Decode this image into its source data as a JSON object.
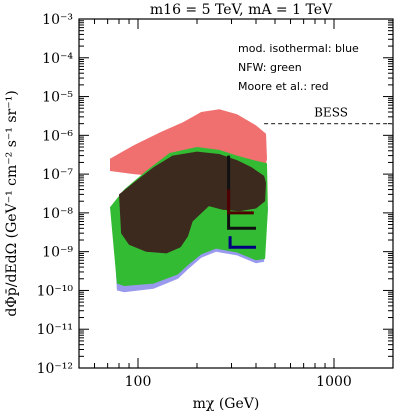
{
  "chart_data": {
    "type": "area",
    "title": "m16 = 5 TeV, mA = 1 TeV",
    "xlabel": "mχ (GeV)",
    "ylabel": "dΦp̄/dEdΩ (GeV⁻¹ cm⁻² s⁻¹ sr⁻¹)",
    "xscale": "log",
    "yscale": "log",
    "xlim": [
      50,
      2000
    ],
    "ylim": [
      1e-12,
      0.001
    ],
    "x_ticks": [
      {
        "value": 100,
        "label": "100"
      },
      {
        "value": 1000,
        "label": "1000"
      }
    ],
    "y_ticks": [
      {
        "value": 1e-12,
        "label": "10⁻¹²"
      },
      {
        "value": 1e-11,
        "label": "10⁻¹¹"
      },
      {
        "value": 1e-10,
        "label": "10⁻¹⁰"
      },
      {
        "value": 1e-09,
        "label": "10⁻⁹"
      },
      {
        "value": 1e-08,
        "label": "10⁻⁸"
      },
      {
        "value": 1e-07,
        "label": "10⁻⁷"
      },
      {
        "value": 1e-06,
        "label": "10⁻⁶"
      },
      {
        "value": 1e-05,
        "label": "10⁻⁵"
      },
      {
        "value": 0.0001,
        "label": "10⁻⁴"
      },
      {
        "value": 0.001,
        "label": "10⁻³"
      }
    ],
    "legend": {
      "placement": "top-right",
      "entries": [
        {
          "label": "mod. isothermal: blue",
          "color": "#9999ee"
        },
        {
          "label": "NFW: green",
          "color": "#33bb33"
        },
        {
          "label": "Moore et al.: red",
          "color": "#f07070"
        }
      ]
    },
    "series": [
      {
        "key": "moore",
        "color": "#f07070",
        "region": [
          [
            72,
            1.2e-07
          ],
          [
            72,
            2.5e-07
          ],
          [
            95,
            5.5e-07
          ],
          [
            130,
            1.2e-06
          ],
          [
            170,
            2.2e-06
          ],
          [
            210,
            4e-06
          ],
          [
            260,
            4.7e-06
          ],
          [
            320,
            3.5e-06
          ],
          [
            400,
            1.8e-06
          ],
          [
            450,
            1.1e-06
          ],
          [
            455,
            2.5e-07
          ],
          [
            430,
            5e-08
          ],
          [
            380,
            2e-08
          ],
          [
            300,
            2.6e-08
          ],
          [
            230,
            4e-08
          ],
          [
            180,
            6e-08
          ],
          [
            150,
            8e-08
          ],
          [
            120,
            9e-08
          ],
          [
            95,
            1e-07
          ]
        ]
      },
      {
        "key": "isothermal",
        "color": "#9999ee",
        "region": [
          [
            74,
            1.5e-08
          ],
          [
            85,
            3.5e-08
          ],
          [
            110,
            1e-07
          ],
          [
            145,
            2.8e-07
          ],
          [
            200,
            4.2e-07
          ],
          [
            260,
            3.8e-07
          ],
          [
            330,
            2.8e-07
          ],
          [
            400,
            2e-07
          ],
          [
            450,
            1.8e-07
          ],
          [
            460,
            1.2e-08
          ],
          [
            440,
            5.5e-10
          ],
          [
            400,
            5e-10
          ],
          [
            320,
            8e-10
          ],
          [
            250,
            1e-09
          ],
          [
            210,
            7e-10
          ],
          [
            180,
            3.5e-10
          ],
          [
            160,
            2e-10
          ],
          [
            120,
            1.1e-10
          ],
          [
            85,
            9e-11
          ],
          [
            78,
            1e-10
          ]
        ]
      },
      {
        "key": "nfw",
        "color": "#33bb33",
        "region": [
          [
            72,
            1.4e-08
          ],
          [
            85,
            4e-08
          ],
          [
            110,
            1.2e-07
          ],
          [
            145,
            3.5e-07
          ],
          [
            200,
            5e-07
          ],
          [
            260,
            4.2e-07
          ],
          [
            320,
            3e-07
          ],
          [
            400,
            2.2e-07
          ],
          [
            455,
            1.9e-07
          ],
          [
            460,
            1.2e-08
          ],
          [
            445,
            6.5e-10
          ],
          [
            400,
            6e-10
          ],
          [
            320,
            9.5e-10
          ],
          [
            250,
            1.2e-09
          ],
          [
            210,
            8.5e-10
          ],
          [
            180,
            4.5e-10
          ],
          [
            160,
            2.6e-10
          ],
          [
            120,
            1.5e-10
          ],
          [
            85,
            1.3e-10
          ],
          [
            78,
            1.5e-10
          ]
        ]
      },
      {
        "key": "overlap",
        "color": "#3d2a1e",
        "region": [
          [
            80,
            3e-08
          ],
          [
            95,
            6e-08
          ],
          [
            120,
            1.5e-07
          ],
          [
            150,
            3e-07
          ],
          [
            200,
            3.8e-07
          ],
          [
            260,
            3.3e-07
          ],
          [
            320,
            2.3e-07
          ],
          [
            380,
            1.5e-07
          ],
          [
            440,
            9e-08
          ],
          [
            450,
            6e-08
          ],
          [
            445,
            2e-08
          ],
          [
            400,
            1.3e-08
          ],
          [
            330,
            1.1e-08
          ],
          [
            270,
            1.2e-08
          ],
          [
            230,
            1.5e-08
          ],
          [
            190,
            6e-09
          ],
          [
            180,
            2.5e-09
          ],
          [
            165,
            1.3e-09
          ],
          [
            140,
            9e-10
          ],
          [
            110,
            1e-09
          ],
          [
            90,
            1.5e-09
          ],
          [
            82,
            3e-09
          ]
        ]
      }
    ],
    "line_marks": [
      {
        "color": "#111111",
        "points": [
          [
            290,
            3e-07
          ],
          [
            290,
            4e-09
          ],
          [
            400,
            4e-09
          ]
        ]
      },
      {
        "color": "#000080",
        "points": [
          [
            295,
            2.5e-09
          ],
          [
            295,
            1.3e-09
          ],
          [
            400,
            1.3e-09
          ]
        ]
      },
      {
        "color": "#500000",
        "points": [
          [
            290,
            4e-08
          ],
          [
            290,
            1e-08
          ],
          [
            390,
            1e-08
          ]
        ]
      }
    ],
    "bess": {
      "label": "BESS",
      "y": 2e-06,
      "x_start": 440,
      "x_end": 2000
    }
  }
}
